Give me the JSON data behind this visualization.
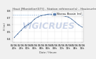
{
  "title": "Haut [Montélier(07)] - Station référence(s) - Hauteur(m) et 03/06/2024 08:10",
  "xlabel": "Date / Heure",
  "ylabel": "H (m)",
  "legend_label": "Niveau Bassin (m)",
  "x_values": [
    0,
    1,
    2,
    3,
    4,
    5,
    6,
    7,
    8,
    9,
    10,
    11,
    12,
    13,
    14,
    15,
    16,
    17,
    18,
    19,
    20
  ],
  "y_values": [
    0.42,
    0.47,
    0.52,
    0.57,
    0.6,
    0.63,
    0.68,
    0.71,
    0.73,
    0.74,
    0.75,
    0.75,
    0.74,
    0.74,
    0.73,
    0.72,
    0.71,
    0.68,
    0.64,
    0.6,
    0.57
  ],
  "line_color": "#5b7fae",
  "marker_color": "#3a5f8a",
  "background_color": "#f0f0f0",
  "plot_bg_color": "#ffffff",
  "grid_color": "#cccccc",
  "dashed_line_y": 0.74,
  "dashed_color": "#6699cc",
  "ylim": [
    0.35,
    0.8
  ],
  "yticks": [
    0.4,
    0.5,
    0.6,
    0.7,
    0.8
  ],
  "watermark": "VIGICRUES",
  "watermark_color": "#ccd5e8",
  "title_fontsize": 3.2,
  "axis_fontsize": 2.8,
  "tick_fontsize": 2.5,
  "legend_fontsize": 2.8,
  "x_tick_positions": [
    0,
    2,
    4,
    6,
    8,
    10,
    12,
    14,
    16,
    18,
    20
  ],
  "x_tick_labels": [
    "02/06\n20h",
    "02/06\n22h",
    "03/06\n00h",
    "03/06\n02h",
    "03/06\n04h",
    "03/06\n06h",
    "03/06\n08h",
    "03/06\n10h",
    "03/06\n12h",
    "03/06\n14h",
    "03/06\n16h"
  ]
}
